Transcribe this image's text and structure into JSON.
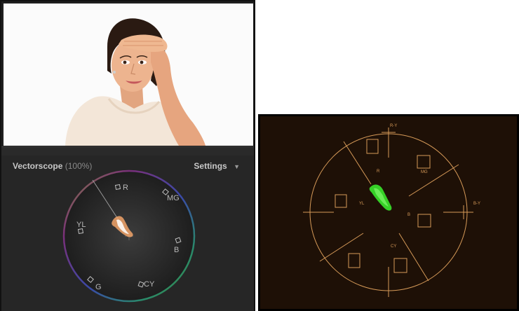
{
  "left_panel": {
    "viewer": {
      "subject": "woman-portrait"
    },
    "vectorscope": {
      "title": "Vectorscope",
      "percent": "(100%)",
      "settings_label": "Settings",
      "settings_icon": "chevron-down-icon",
      "targets": {
        "r": "R",
        "mg": "MG",
        "b": "B",
        "cy": "CY",
        "g": "G",
        "yl": "YL"
      },
      "trace_color": "#f2a46a"
    }
  },
  "right_scope": {
    "labels": {
      "r_y": "R-Y",
      "b_y": "B-Y",
      "r": "R",
      "mg": "MG",
      "yl": "YL",
      "b": "B",
      "cy": "CY"
    },
    "graticule_color": "#d69a58",
    "trace_color": "#39e62b",
    "background": "#1e1006"
  }
}
